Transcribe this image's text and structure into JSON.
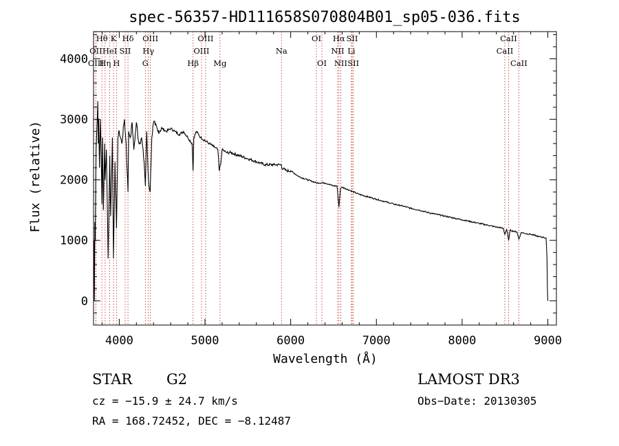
{
  "chart_data": {
    "type": "line",
    "title": "spec-56357-HD111658S070804B01_sp05-036.fits",
    "xlabel": "Wavelength (Å)",
    "ylabel": "Flux (relative)",
    "xlim": [
      3700,
      9100
    ],
    "ylim": [
      -400,
      4450
    ],
    "x_ticks": [
      4000,
      5000,
      6000,
      7000,
      8000,
      9000
    ],
    "y_ticks": [
      0,
      1000,
      2000,
      3000,
      4000
    ],
    "series": [
      {
        "name": "flux",
        "x": [
          3705,
          3710,
          3715,
          3720,
          3730,
          3740,
          3750,
          3755,
          3760,
          3770,
          3780,
          3790,
          3798,
          3805,
          3815,
          3830,
          3835,
          3850,
          3870,
          3889,
          3900,
          3920,
          3933,
          3950,
          3968,
          3985,
          4000,
          4030,
          4060,
          4080,
          4102,
          4110,
          4130,
          4150,
          4170,
          4200,
          4230,
          4260,
          4290,
          4305,
          4320,
          4340,
          4360,
          4380,
          4400,
          4420,
          4450,
          4500,
          4550,
          4600,
          4650,
          4700,
          4750,
          4800,
          4850,
          4861,
          4870,
          4900,
          4950,
          5000,
          5050,
          5100,
          5150,
          5167,
          5172,
          5183,
          5200,
          5250,
          5300,
          5400,
          5500,
          5600,
          5700,
          5800,
          5890,
          5896,
          5950,
          6000,
          6100,
          6200,
          6300,
          6400,
          6500,
          6540,
          6563,
          6580,
          6600,
          6700,
          6800,
          6900,
          7000,
          7100,
          7200,
          7300,
          7400,
          7500,
          7600,
          7700,
          7800,
          7900,
          8000,
          8100,
          8200,
          8300,
          8400,
          8480,
          8498,
          8520,
          8542,
          8560,
          8600,
          8640,
          8662,
          8690,
          8750,
          8800,
          8850,
          8900,
          8950,
          8980,
          8990,
          8995,
          9000
        ],
        "y": [
          1000,
          0,
          1300,
          1000,
          2500,
          2900,
          3300,
          2600,
          3000,
          2200,
          3000,
          2400,
          1600,
          2700,
          1500,
          2600,
          2000,
          2500,
          700,
          2400,
          1400,
          2700,
          700,
          2300,
          1200,
          2700,
          2800,
          2600,
          3000,
          2600,
          1800,
          2800,
          2700,
          2950,
          2500,
          2950,
          2600,
          2700,
          2300,
          1900,
          2800,
          2000,
          1800,
          2700,
          2950,
          2900,
          2800,
          2850,
          2800,
          2850,
          2800,
          2750,
          2800,
          2700,
          2600,
          2150,
          2700,
          2800,
          2700,
          2650,
          2600,
          2550,
          2500,
          2150,
          2200,
          2250,
          2500,
          2450,
          2450,
          2400,
          2350,
          2300,
          2250,
          2250,
          2250,
          2200,
          2150,
          2150,
          2050,
          2000,
          1950,
          1950,
          1900,
          1900,
          1550,
          1850,
          1880,
          1820,
          1760,
          1720,
          1680,
          1640,
          1600,
          1570,
          1530,
          1500,
          1460,
          1430,
          1400,
          1370,
          1340,
          1310,
          1280,
          1250,
          1220,
          1200,
          1100,
          1180,
          1000,
          1170,
          1150,
          1140,
          1020,
          1130,
          1110,
          1100,
          1080,
          1060,
          1050,
          1040,
          700,
          200,
          0
        ]
      }
    ],
    "lines": [
      {
        "label": "Hθ",
        "x": 3798,
        "row": 0
      },
      {
        "label": "OII",
        "x": 3727,
        "row": 1
      },
      {
        "label": "OIII",
        "x": 3727,
        "row": 2
      },
      {
        "label": "K",
        "x": 3933,
        "row": 0
      },
      {
        "label": "HeI",
        "x": 3889,
        "row": 1
      },
      {
        "label": "Hη",
        "x": 3835,
        "row": 2
      },
      {
        "label": "SII",
        "x": 4069,
        "row": 1
      },
      {
        "label": "H",
        "x": 3968,
        "row": 2
      },
      {
        "label": "Hδ",
        "x": 4102,
        "row": 0
      },
      {
        "label": "OIII",
        "x": 4363,
        "row": 0
      },
      {
        "label": "Hγ",
        "x": 4340,
        "row": 1
      },
      {
        "label": "G",
        "x": 4305,
        "row": 2
      },
      {
        "label": "OIII",
        "x": 5007,
        "row": 0
      },
      {
        "label": "OIII",
        "x": 4959,
        "row": 1
      },
      {
        "label": "Hβ",
        "x": 4861,
        "row": 2
      },
      {
        "label": "Mg",
        "x": 5175,
        "row": 2
      },
      {
        "label": "Na",
        "x": 5893,
        "row": 1
      },
      {
        "label": "OI",
        "x": 6300,
        "row": 0
      },
      {
        "label": "OI",
        "x": 6364,
        "row": 2
      },
      {
        "label": "Hα",
        "x": 6563,
        "row": 0
      },
      {
        "label": "SII",
        "x": 6717,
        "row": 0
      },
      {
        "label": "NII",
        "x": 6548,
        "row": 1
      },
      {
        "label": "Li",
        "x": 6708,
        "row": 1
      },
      {
        "label": "NII",
        "x": 6584,
        "row": 2
      },
      {
        "label": "SII",
        "x": 6731,
        "row": 2
      },
      {
        "label": "CaII",
        "x": 8542,
        "row": 0
      },
      {
        "label": "CaII",
        "x": 8498,
        "row": 1
      },
      {
        "label": "CaII",
        "x": 8662,
        "row": 2
      }
    ]
  },
  "info": {
    "class": "STAR",
    "subclass": "G2",
    "survey": "LAMOST DR3",
    "cz": "cz = −15.9 ± 24.7 km/s",
    "obs_date": "Obs−Date: 20130305",
    "radec": "RA = 168.72452, DEC =  −8.12487"
  }
}
